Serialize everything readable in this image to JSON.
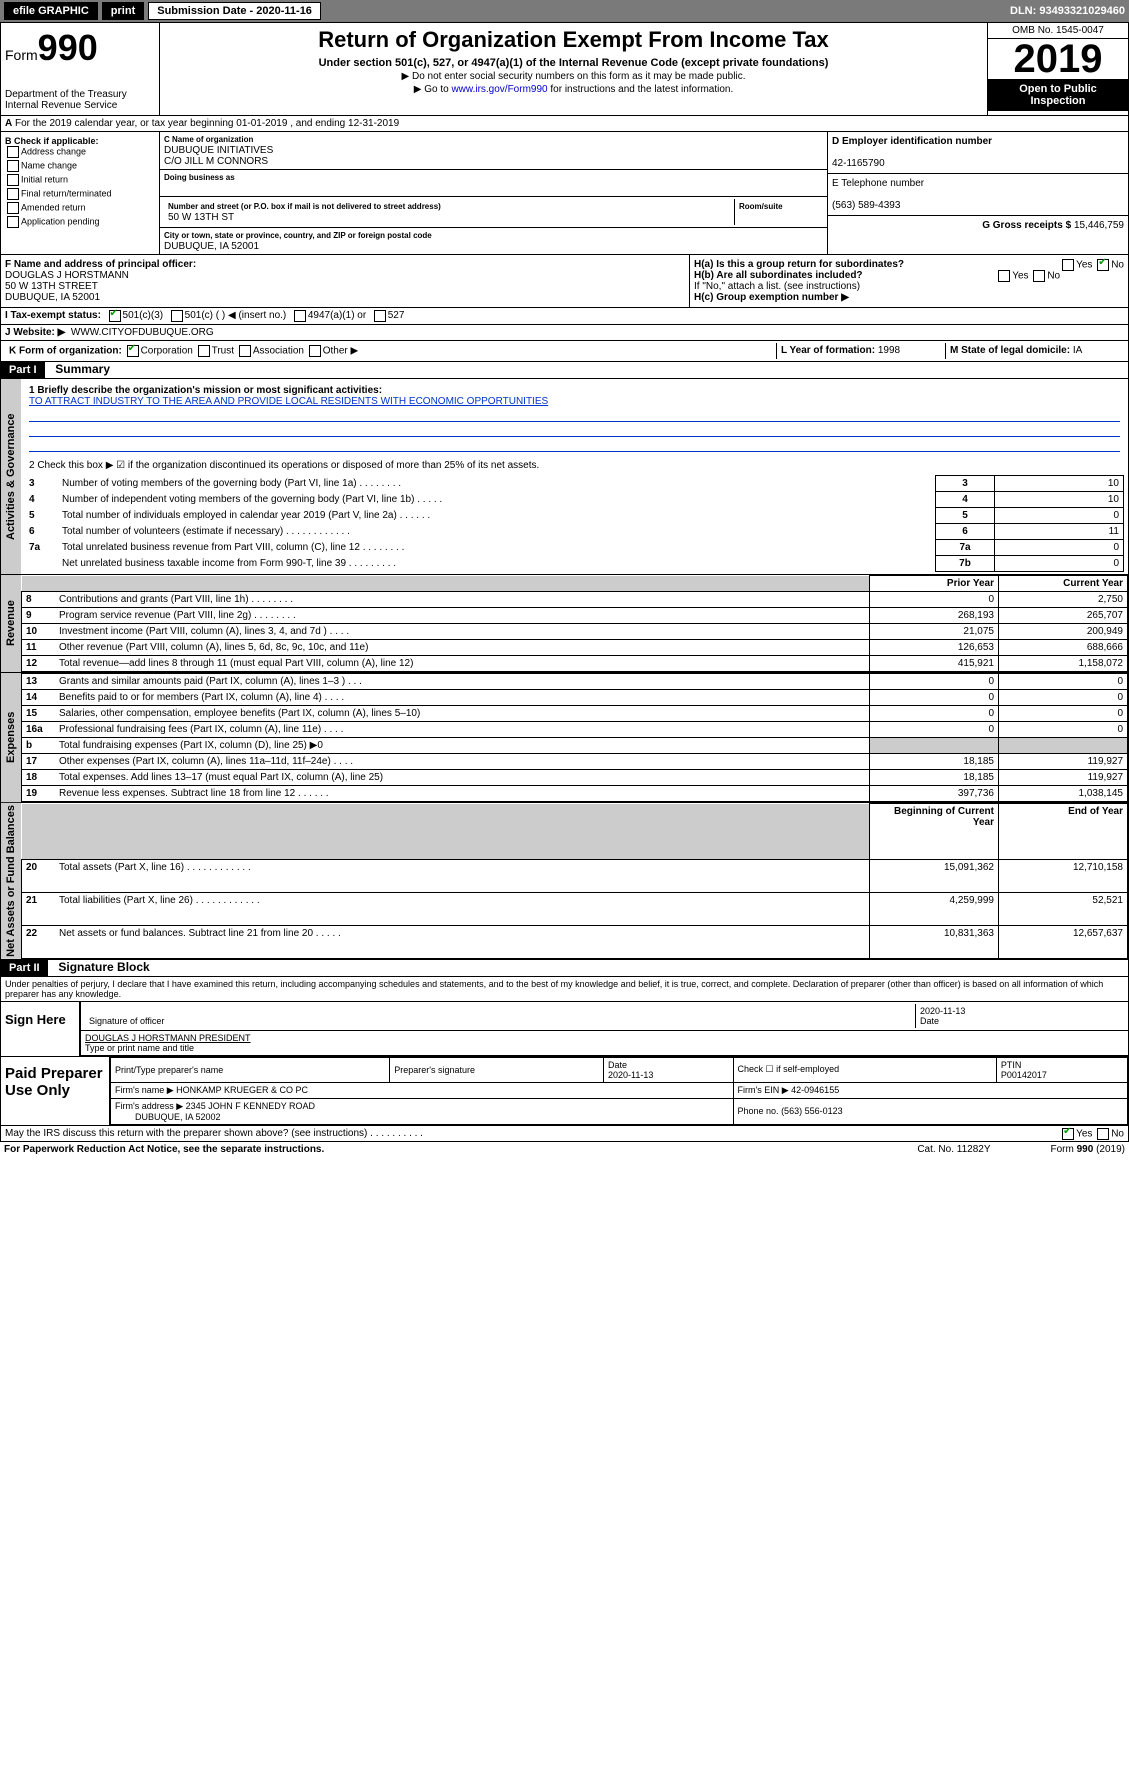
{
  "topbar": {
    "efile": "efile GRAPHIC",
    "print": "print",
    "sub_label": "Submission Date - 2020-11-16",
    "dln": "DLN: 93493321029460"
  },
  "header": {
    "form": "Form",
    "num": "990",
    "title": "Return of Organization Exempt From Income Tax",
    "sub": "Under section 501(c), 527, or 4947(a)(1) of the Internal Revenue Code (except private foundations)",
    "note1": "▶ Do not enter social security numbers on this form as it may be made public.",
    "note2": "▶ Go to www.irs.gov/Form990 for instructions and the latest information.",
    "dept": "Department of the Treasury\nInternal Revenue Service",
    "omb": "OMB No. 1545-0047",
    "year": "2019",
    "open": "Open to Public Inspection"
  },
  "line_a": "For the 2019 calendar year, or tax year beginning 01-01-2019    , and ending 12-31-2019",
  "box_b": {
    "title": "B Check if applicable:",
    "items": [
      "Address change",
      "Name change",
      "Initial return",
      "Final return/terminated",
      "Amended return",
      "Application pending"
    ]
  },
  "box_c": {
    "name_lbl": "C Name of organization",
    "name": "DUBUQUE INITIATIVES",
    "co": "C/O JILL M CONNORS",
    "dba_lbl": "Doing business as",
    "dba": "",
    "addr_lbl": "Number and street (or P.O. box if mail is not delivered to street address)",
    "addr": "50 W 13TH ST",
    "room_lbl": "Room/suite",
    "city_lbl": "City or town, state or province, country, and ZIP or foreign postal code",
    "city": "DUBUQUE, IA 52001"
  },
  "box_d": {
    "lbl": "D Employer identification number",
    "val": "42-1165790"
  },
  "box_e": {
    "lbl": "E Telephone number",
    "val": "(563) 589-4393"
  },
  "box_g": {
    "lbl": "G Gross receipts $",
    "val": "15,446,759"
  },
  "box_f": {
    "lbl": "F  Name and address of principal officer:",
    "name": "DOUGLAS J HORSTMANN",
    "addr": "50 W 13TH STREET",
    "city": "DUBUQUE, IA  52001"
  },
  "box_h": {
    "a": "H(a)  Is this a group return for subordinates?",
    "b": "H(b)  Are all subordinates included?",
    "b_note": "If \"No,\" attach a list. (see instructions)",
    "c": "H(c)  Group exemption number ▶"
  },
  "box_i": {
    "lbl": "I    Tax-exempt status:",
    "opts": [
      "501(c)(3)",
      "501(c) (  ) ◀ (insert no.)",
      "4947(a)(1) or",
      "527"
    ]
  },
  "box_j": {
    "lbl": "J   Website: ▶",
    "val": "WWW.CITYOFDUBUQUE.ORG"
  },
  "box_k": {
    "lbl": "K Form of organization:",
    "opts": [
      "Corporation",
      "Trust",
      "Association",
      "Other ▶"
    ]
  },
  "box_l": {
    "lbl": "L Year of formation:",
    "val": "1998"
  },
  "box_m": {
    "lbl": "M State of legal domicile:",
    "val": "IA"
  },
  "part1": {
    "hdr": "Part I",
    "title": "Summary",
    "l1": "1  Briefly describe the organization's mission or most significant activities:",
    "mission": "TO ATTRACT INDUSTRY TO THE AREA AND PROVIDE LOCAL RESIDENTS WITH ECONOMIC OPPORTUNITIES",
    "l2": "2   Check this box ▶ ☑  if the organization discontinued its operations or disposed of more than 25% of its net assets.",
    "rows_ag": [
      {
        "n": "3",
        "d": "Number of voting members of the governing body (Part VI, line 1a)  .    .    .    .    .    .    .    .",
        "box": "3",
        "v": "10"
      },
      {
        "n": "4",
        "d": "Number of independent voting members of the governing body (Part VI, line 1b)   .    .    .    .    .",
        "box": "4",
        "v": "10"
      },
      {
        "n": "5",
        "d": "Total number of individuals employed in calendar year 2019 (Part V, line 2a)   .    .    .    .    .    .",
        "box": "5",
        "v": "0"
      },
      {
        "n": "6",
        "d": "Total number of volunteers (estimate if necessary)   .    .    .    .    .    .    .    .    .    .    .    .",
        "box": "6",
        "v": "11"
      },
      {
        "n": "7a",
        "d": "Total unrelated business revenue from Part VIII, column (C), line 12  .    .    .    .    .    .    .    .",
        "box": "7a",
        "v": "0"
      },
      {
        "n": "",
        "d": "Net unrelated business taxable income from Form 990-T, line 39  .    .    .    .    .    .    .    .    .",
        "box": "7b",
        "v": "0"
      }
    ],
    "col_hdr": {
      "prior": "Prior Year",
      "current": "Current Year"
    },
    "rev": [
      {
        "n": "8",
        "d": "Contributions and grants (Part VIII, line 1h)   .    .    .    .    .    .    .    .",
        "p": "0",
        "c": "2,750"
      },
      {
        "n": "9",
        "d": "Program service revenue (Part VIII, line 2g)   .    .    .    .    .    .    .    .",
        "p": "268,193",
        "c": "265,707"
      },
      {
        "n": "10",
        "d": "Investment income (Part VIII, column (A), lines 3, 4, and 7d )   .    .    .    .",
        "p": "21,075",
        "c": "200,949"
      },
      {
        "n": "11",
        "d": "Other revenue (Part VIII, column (A), lines 5, 6d, 8c, 9c, 10c, and 11e)",
        "p": "126,653",
        "c": "688,666"
      },
      {
        "n": "12",
        "d": "Total revenue—add lines 8 through 11 (must equal Part VIII, column (A), line 12)",
        "p": "415,921",
        "c": "1,158,072"
      }
    ],
    "exp": [
      {
        "n": "13",
        "d": "Grants and similar amounts paid (Part IX, column (A), lines 1–3 )   .    .    .",
        "p": "0",
        "c": "0"
      },
      {
        "n": "14",
        "d": "Benefits paid to or for members (Part IX, column (A), line 4)   .    .    .    .",
        "p": "0",
        "c": "0"
      },
      {
        "n": "15",
        "d": "Salaries, other compensation, employee benefits (Part IX, column (A), lines 5–10)",
        "p": "0",
        "c": "0"
      },
      {
        "n": "16a",
        "d": "Professional fundraising fees (Part IX, column (A), line 11e)   .    .    .    .",
        "p": "0",
        "c": "0"
      },
      {
        "n": "b",
        "d": "Total fundraising expenses (Part IX, column (D), line 25) ▶0",
        "p": "",
        "c": "",
        "grey": true
      },
      {
        "n": "17",
        "d": "Other expenses (Part IX, column (A), lines 11a–11d, 11f–24e)   .    .    .    .",
        "p": "18,185",
        "c": "119,927"
      },
      {
        "n": "18",
        "d": "Total expenses. Add lines 13–17 (must equal Part IX, column (A), line 25)",
        "p": "18,185",
        "c": "119,927"
      },
      {
        "n": "19",
        "d": "Revenue less expenses. Subtract line 18 from line 12  .    .    .    .    .    .",
        "p": "397,736",
        "c": "1,038,145"
      }
    ],
    "net_hdr": {
      "begin": "Beginning of Current Year",
      "end": "End of Year"
    },
    "net": [
      {
        "n": "20",
        "d": "Total assets (Part X, line 16)   .    .    .    .    .    .    .    .    .    .    .    .",
        "p": "15,091,362",
        "c": "12,710,158"
      },
      {
        "n": "21",
        "d": "Total liabilities (Part X, line 26)   .    .    .    .    .    .    .    .    .    .    .    .",
        "p": "4,259,999",
        "c": "52,521"
      },
      {
        "n": "22",
        "d": "Net assets or fund balances. Subtract line 21 from line 20  .    .    .    .    .",
        "p": "10,831,363",
        "c": "12,657,637"
      }
    ],
    "side": {
      "ag": "Activities & Governance",
      "rev": "Revenue",
      "exp": "Expenses",
      "net": "Net Assets or Fund Balances"
    }
  },
  "part2": {
    "hdr": "Part II",
    "title": "Signature Block",
    "perjury": "Under penalties of perjury, I declare that I have examined this return, including accompanying schedules and statements, and to the best of my knowledge and belief, it is true, correct, and complete. Declaration of preparer (other than officer) is based on all information of which preparer has any knowledge."
  },
  "sign": {
    "here": "Sign Here",
    "sig_lbl": "Signature of officer",
    "date": "2020-11-13",
    "date_lbl": "Date",
    "name": "DOUGLAS J HORSTMANN PRESIDENT",
    "name_lbl": "Type or print name and title"
  },
  "prep": {
    "title": "Paid Preparer Use Only",
    "r1": {
      "a": "Print/Type preparer's name",
      "b": "Preparer's signature",
      "c": "Date",
      "cv": "2020-11-13",
      "d": "Check ☐ if self-employed",
      "e": "PTIN",
      "ev": "P00142017"
    },
    "r2": {
      "a": "Firm's name     ▶",
      "av": "HONKAMP KRUEGER & CO PC",
      "b": "Firm's EIN ▶",
      "bv": "42-0946155"
    },
    "r3": {
      "a": "Firm's address ▶",
      "av": "2345 JOHN F KENNEDY ROAD",
      "av2": "DUBUQUE, IA  52002",
      "b": "Phone no.",
      "bv": "(563) 556-0123"
    }
  },
  "discuss": "May the IRS discuss this return with the preparer shown above? (see instructions)    .    .    .    .    .    .    .    .    .    .",
  "footer": {
    "l": "For Paperwork Reduction Act Notice, see the separate instructions.",
    "m": "Cat. No. 11282Y",
    "r": "Form 990 (2019)"
  }
}
